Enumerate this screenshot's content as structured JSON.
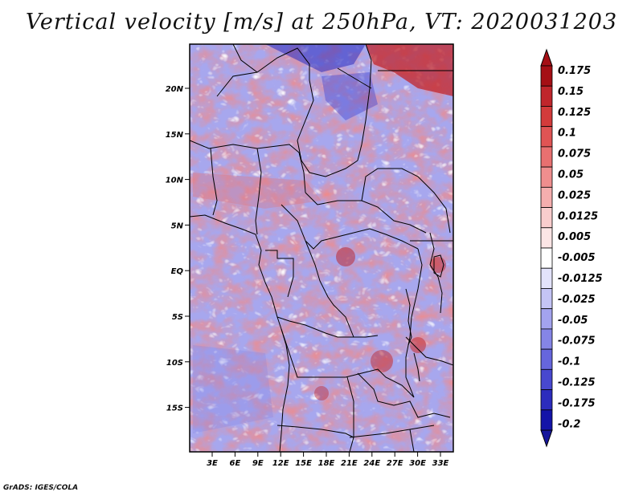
{
  "title": "Vertical velocity [m/s] at 250hPa, VT: 2020031203",
  "credit": "GrADS: IGES/COLA",
  "map": {
    "lat_ticks": [
      "20N",
      "15N",
      "10N",
      "5N",
      "EQ",
      "5S",
      "10S",
      "15S"
    ],
    "lon_ticks": [
      "3E",
      "6E",
      "9E",
      "12E",
      "15E",
      "18E",
      "21E",
      "24E",
      "27E",
      "30E",
      "33E"
    ]
  },
  "colorbar": {
    "levels": [
      {
        "label": "0.175",
        "color": "#a50f15"
      },
      {
        "label": "0.15",
        "color": "#c0262c"
      },
      {
        "label": "0.125",
        "color": "#d33b3b"
      },
      {
        "label": "0.1",
        "color": "#e05454"
      },
      {
        "label": "0.075",
        "color": "#e87070"
      },
      {
        "label": "0.05",
        "color": "#ef8e8e"
      },
      {
        "label": "0.025",
        "color": "#f5aeae"
      },
      {
        "label": "0.0125",
        "color": "#f9cdcd"
      },
      {
        "label": "0.005",
        "color": "#fce5e5"
      },
      {
        "label": "-0.005",
        "color": "#ffffff"
      },
      {
        "label": "-0.0125",
        "color": "#e3e3fb"
      },
      {
        "label": "-0.025",
        "color": "#c4c4f5"
      },
      {
        "label": "-0.05",
        "color": "#a3a3ee"
      },
      {
        "label": "-0.075",
        "color": "#8585e6"
      },
      {
        "label": "-0.1",
        "color": "#6666dc"
      },
      {
        "label": "-0.125",
        "color": "#4848cf"
      },
      {
        "label": "-0.175",
        "color": "#2c2cbd"
      },
      {
        "label": "-0.2",
        "color": "#1414a8"
      }
    ],
    "top_color": "#a50f15",
    "bottom_color": "#16169c"
  }
}
